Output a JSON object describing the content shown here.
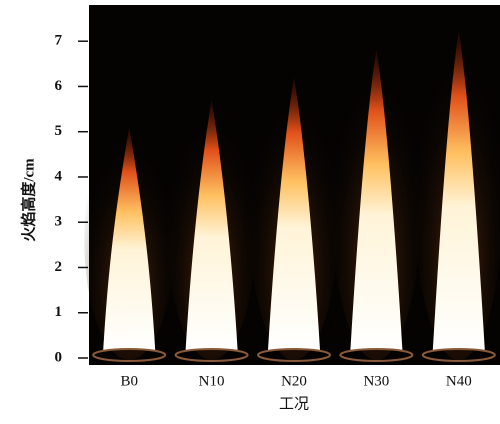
{
  "chart_data": {
    "type": "flame",
    "ylabel": "火焰高度/cm",
    "xlabel": "工况",
    "categories": [
      "B0",
      "N10",
      "N20",
      "N30",
      "N40"
    ],
    "values": [
      5.1,
      5.7,
      6.2,
      6.8,
      7.2
    ],
    "ylim": [
      0,
      7.8
    ],
    "yticks": [
      0,
      1,
      2,
      3,
      4,
      5,
      6,
      7
    ]
  }
}
